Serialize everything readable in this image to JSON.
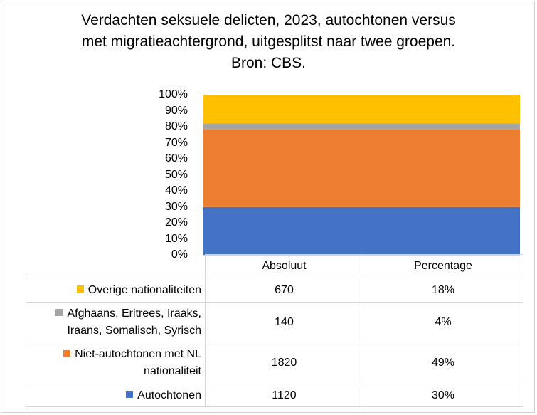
{
  "chart_data": {
    "type": "bar",
    "stacked": "percent",
    "title": "Verdachten seksuele delicten, 2023, autochtonen versus met migratieachtergrond, uitgesplitst naar twee groepen. Bron: CBS.",
    "title_lines": [
      "Verdachten seksuele delicten, 2023, autochtonen versus",
      "met migratieachtergrond, uitgesplitst naar twee groepen.",
      "Bron: CBS."
    ],
    "ylim": [
      0,
      100
    ],
    "yticks": [
      "0%",
      "10%",
      "20%",
      "30%",
      "40%",
      "50%",
      "60%",
      "70%",
      "80%",
      "90%",
      "100%"
    ],
    "gridlines": false,
    "legend_position": "data-table",
    "table_columns": [
      "Absoluut",
      "Percentage"
    ],
    "series": [
      {
        "name": "Overige nationaliteiten",
        "name_lines": [
          "Overige nationaliteiten"
        ],
        "color": "#FFC000",
        "absolute": "670",
        "percentage": "18%"
      },
      {
        "name": "Afghaans, Eritrees, Iraaks, Iraans, Somalisch, Syrisch",
        "name_lines": [
          "Afghaans, Eritrees, Iraaks,",
          "Iraans, Somalisch, Syrisch"
        ],
        "color": "#A5A5A5",
        "absolute": "140",
        "percentage": "4%"
      },
      {
        "name": "Niet-autochtonen met NL nationaliteit",
        "name_lines": [
          "Niet-autochtonen met NL",
          "nationaliteit"
        ],
        "color": "#ED7D31",
        "absolute": "1820",
        "percentage": "49%"
      },
      {
        "name": "Autochtonen",
        "name_lines": [
          "Autochtonen"
        ],
        "color": "#4472C4",
        "absolute": "1120",
        "percentage": "30%"
      }
    ]
  }
}
